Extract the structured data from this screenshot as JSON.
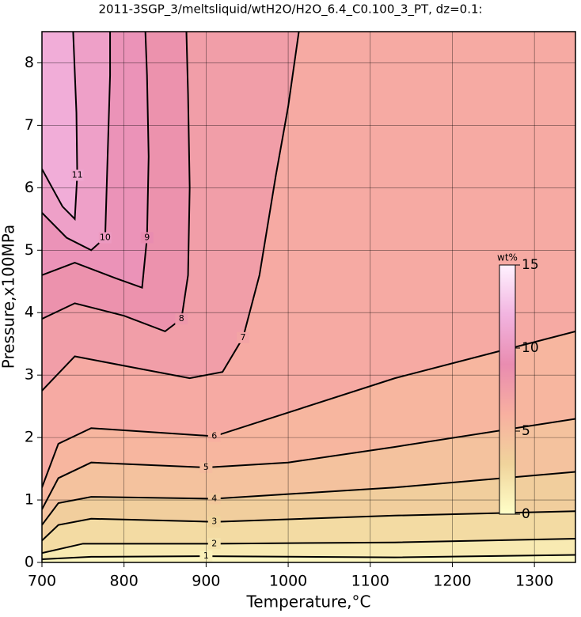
{
  "chart_data": {
    "type": "contour",
    "title": "2011-3SGP_3/meltsliquid/wtH2O/H2O_6.4_C0.100_3_PT, dz=0.1:",
    "x_label": "Temperature,°C",
    "y_label": "Pressure,x100MPa",
    "xlim": [
      700,
      1350
    ],
    "ylim": [
      0,
      8.5
    ],
    "xticks": [
      700,
      800,
      900,
      1000,
      1100,
      1200,
      1300
    ],
    "yticks": [
      0,
      1,
      2,
      3,
      4,
      5,
      6,
      7,
      8
    ],
    "grid": true,
    "colormap": [
      [
        0,
        "#ffffc8"
      ],
      [
        3,
        "#f0d49c"
      ],
      [
        6,
        "#f8b0a0"
      ],
      [
        9,
        "#e98cb0"
      ],
      [
        12,
        "#f2b4e0"
      ],
      [
        15,
        "#fff2ff"
      ]
    ],
    "colorbar": {
      "label": "wt%",
      "lim": [
        0,
        15
      ],
      "ticks": [
        0,
        5,
        10,
        15
      ]
    },
    "contours": [
      {
        "level": 1,
        "x": [
          700,
          760,
          900,
          1130,
          1350
        ],
        "y": [
          0.05,
          0.09,
          0.1,
          0.08,
          0.12
        ]
      },
      {
        "level": 2,
        "x": [
          700,
          750,
          910,
          1130,
          1350
        ],
        "y": [
          0.15,
          0.3,
          0.3,
          0.32,
          0.38
        ]
      },
      {
        "level": 3,
        "x": [
          700,
          720,
          760,
          910,
          1130,
          1350
        ],
        "y": [
          0.35,
          0.6,
          0.7,
          0.65,
          0.75,
          0.82
        ]
      },
      {
        "level": 4,
        "x": [
          700,
          720,
          760,
          910,
          1130,
          1350
        ],
        "y": [
          0.6,
          0.95,
          1.05,
          1.02,
          1.2,
          1.45
        ]
      },
      {
        "level": 5,
        "x": [
          700,
          720,
          760,
          900,
          1000,
          1130,
          1350
        ],
        "y": [
          0.85,
          1.35,
          1.6,
          1.52,
          1.6,
          1.85,
          2.3
        ]
      },
      {
        "level": 6,
        "x": [
          700,
          720,
          760,
          910,
          1000,
          1130,
          1350
        ],
        "y": [
          1.2,
          1.9,
          2.15,
          2.02,
          2.4,
          2.95,
          3.7
        ]
      },
      {
        "level": 7,
        "x": [
          700,
          740,
          800,
          880,
          920,
          945,
          965,
          985,
          1000,
          1013
        ],
        "y": [
          2.75,
          3.3,
          3.15,
          2.95,
          3.05,
          3.6,
          4.6,
          6.2,
          7.3,
          8.5
        ]
      },
      {
        "level": 8,
        "x": [
          700,
          740,
          800,
          850,
          870,
          878,
          880,
          878,
          876
        ],
        "y": [
          3.9,
          4.15,
          3.95,
          3.7,
          3.9,
          4.6,
          6,
          7.5,
          8.5
        ]
      },
      {
        "level": 9,
        "x": [
          700,
          740,
          790,
          822,
          828,
          830,
          828,
          826
        ],
        "y": [
          4.6,
          4.8,
          4.55,
          4.4,
          5.2,
          6.5,
          7.8,
          8.5
        ]
      },
      {
        "level": 10,
        "x": [
          700,
          730,
          760,
          777,
          780,
          783,
          783
        ],
        "y": [
          5.6,
          5.2,
          5.0,
          5.2,
          6.5,
          7.8,
          8.5
        ]
      },
      {
        "level": 11,
        "x": [
          700,
          725,
          740,
          743,
          742,
          738
        ],
        "y": [
          6.3,
          5.7,
          5.5,
          6.2,
          7.2,
          8.5
        ]
      }
    ]
  }
}
